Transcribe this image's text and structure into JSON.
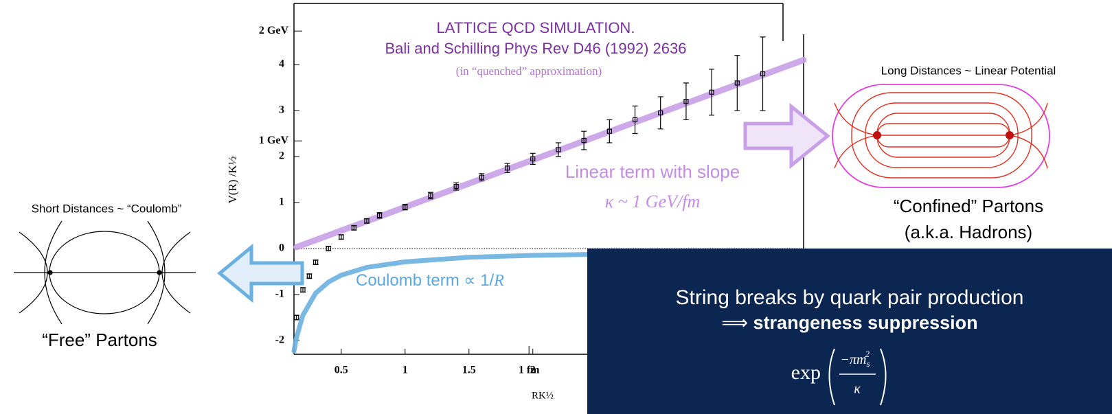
{
  "chart_data": {
    "type": "scatter",
    "title": "LATTICE QCD SIMULATION.",
    "subtitle": "Bali and Schilling Phys Rev D46 (1992) 2636",
    "note": "(in “quenched” approximation)",
    "y_label": "V(R) /K½",
    "x_label": "RK½",
    "xlim": [
      0.13,
      4.12
    ],
    "ylim": [
      -2.3,
      5.33
    ],
    "xticks": [
      0.5,
      1,
      1.5,
      2
    ],
    "yticks": [
      -2,
      -1,
      0,
      1,
      2,
      3,
      4
    ],
    "y_secondary_ticks": [
      {
        "value": 4.73,
        "label": "2 GeV"
      },
      {
        "value": 2.34,
        "label": "1 GeV"
      }
    ],
    "x_secondary_ticks": [
      {
        "value": 1.97,
        "label": "1 fm"
      }
    ],
    "series": [
      {
        "color": "#000000",
        "x": [
          0.15,
          0.2,
          0.25,
          0.3,
          0.4,
          0.5,
          0.6,
          0.7,
          0.8,
          1.0,
          1.2,
          1.4,
          1.6,
          1.8,
          2.0,
          2.2,
          2.4,
          2.6,
          2.8,
          3.0,
          3.2,
          3.4,
          3.6,
          3.8
        ],
        "values": [
          -1.5,
          -0.9,
          -0.6,
          -0.3,
          0.0,
          0.25,
          0.45,
          0.6,
          0.72,
          0.9,
          1.15,
          1.35,
          1.55,
          1.75,
          1.95,
          2.15,
          2.35,
          2.55,
          2.8,
          2.95,
          3.2,
          3.4,
          3.6,
          3.8
        ],
        "errors": [
          0.05,
          0.05,
          0.05,
          0.05,
          0.05,
          0.05,
          0.05,
          0.05,
          0.06,
          0.06,
          0.07,
          0.08,
          0.08,
          0.1,
          0.12,
          0.15,
          0.2,
          0.25,
          0.3,
          0.35,
          0.4,
          0.5,
          0.6,
          0.8
        ]
      }
    ],
    "fits": [
      {
        "name": "Linear term with slope",
        "formula": "κ ~ 1 GeV/fm",
        "color": "#c9a0e8",
        "x": [
          0.15,
          4.12
        ],
        "values": [
          0.03,
          4.1
        ]
      },
      {
        "name": "Coulomb term ∝ 1/",
        "formula": "R",
        "color": "#6ab0e0",
        "x": [
          0.13,
          0.15,
          0.2,
          0.3,
          0.4,
          0.5,
          0.7,
          1.0,
          1.5,
          2.0,
          3.0,
          4.12
        ],
        "values": [
          -2.23,
          -1.93,
          -1.45,
          -0.97,
          -0.73,
          -0.58,
          -0.41,
          -0.29,
          -0.19,
          -0.15,
          -0.1,
          -0.07
        ]
      }
    ]
  },
  "left_panel": {
    "title": "Short Distances ~ “Coulomb”",
    "caption": "“Free” Partons"
  },
  "right_panel": {
    "title": "Long Distances ~ Linear Potential",
    "caption": "“Confined” Partons",
    "caption2": "(a.k.a. Hadrons)"
  },
  "box": {
    "line1": "String breaks by quark pair production",
    "arrow": "⟹",
    "line2": "strangeness suppression",
    "formula": {
      "function": "exp",
      "numerator": "−πm",
      "sub": "s",
      "sup": "2",
      "denominator": "κ"
    }
  }
}
